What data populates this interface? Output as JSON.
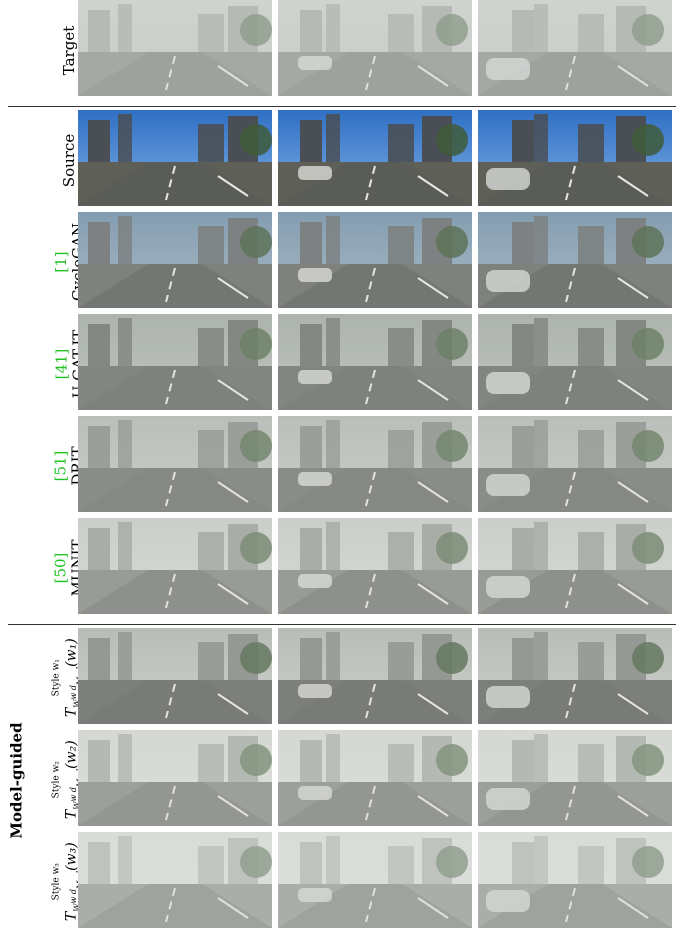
{
  "rows": [
    {
      "key": "target",
      "label": "Target",
      "ref": ""
    },
    {
      "key": "source",
      "label": "Source",
      "ref": ""
    },
    {
      "key": "cyclegan",
      "label": "CycleGAN",
      "ref": "[1]"
    },
    {
      "key": "ugatit",
      "label": "U-GAT-IT",
      "ref": "[41]"
    },
    {
      "key": "drit",
      "label": "DRIT",
      "ref": "[51]"
    },
    {
      "key": "munit",
      "label": "MUNIT",
      "ref": "[50]"
    }
  ],
  "model_guided": {
    "group_label": "Model-guided",
    "rows": [
      {
        "style_label": "Style w₁",
        "math": "T",
        "math_sub": "W",
        "math_sub2": "Mod",
        "math_sup": "w d",
        "math_arg": "(w₁)"
      },
      {
        "style_label": "Style w₂",
        "math": "T",
        "math_sub": "W",
        "math_sub2": "Mod",
        "math_sup": "w d",
        "math_arg": "(w₂)"
      },
      {
        "style_label": "Style w₃",
        "math": "T",
        "math_sub": "W",
        "math_sub2": "Mod",
        "math_sup": "w d",
        "math_arg": "(w₃)"
      }
    ]
  },
  "colors": {
    "ref_green": "#22c022",
    "sky_clear": "#3a78c8",
    "fog": "#b8bdb8",
    "road": "#5a5e5c"
  }
}
